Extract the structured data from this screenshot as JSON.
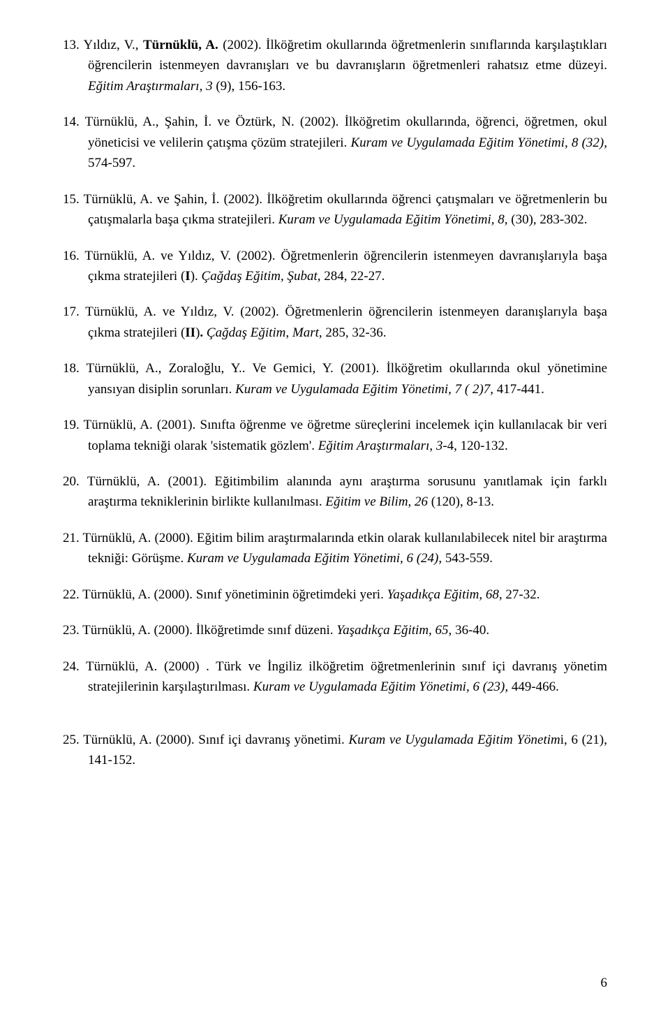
{
  "page_number": "6",
  "references": [
    {
      "parts": [
        {
          "t": "plain",
          "v": "Yıldız, V., "
        },
        {
          "t": "bold",
          "v": "Türnüklü, A."
        },
        {
          "t": "plain",
          "v": " (2002). İlköğretim okullarında öğretmenlerin sınıflarında karşılaştıkları öğrencilerin istenmeyen davranışları ve bu  davranışların öğretmenleri rahatsız etme düzeyi. "
        },
        {
          "t": "italic",
          "v": "Eğitim Araştırmaları, 3 "
        },
        {
          "t": "plain",
          "v": "(9), 156-163."
        }
      ]
    },
    {
      "parts": [
        {
          "t": "plain",
          "v": "Türnüklü, A.,  Şahin, İ. ve Öztürk, N. (2002). İlköğretim okullarında, öğrenci, öğretmen, okul yöneticisi ve velilerin çatışma çözüm stratejileri. "
        },
        {
          "t": "italic",
          "v": "Kuram ve Uygulamada Eğitim Yönetimi, 8 (32), "
        },
        {
          "t": "plain",
          "v": "574-597."
        }
      ]
    },
    {
      "parts": [
        {
          "t": "plain",
          "v": "Türnüklü, A. ve Şahin, İ. (2002). İlköğretim okullarında öğrenci çatışmaları ve öğretmenlerin bu çatışmalarla başa çıkma stratejileri. "
        },
        {
          "t": "italic",
          "v": "Kuram ve Uygulamada Eğitim Yönetimi, 8"
        },
        {
          "t": "plain",
          "v": ", (30), 283-302."
        }
      ]
    },
    {
      "parts": [
        {
          "t": "plain",
          "v": "Türnüklü, A. ve Yıldız, V. (2002). Öğretmenlerin öğrencilerin istenmeyen davranışlarıyla başa çıkma stratejileri ("
        },
        {
          "t": "bold",
          "v": "I"
        },
        {
          "t": "plain",
          "v": "). "
        },
        {
          "t": "italic",
          "v": "Çağdaş Eğitim, Şubat"
        },
        {
          "t": "plain",
          "v": ", 284, 22-27."
        }
      ]
    },
    {
      "parts": [
        {
          "t": "plain",
          "v": "Türnüklü, A. ve Yıldız, V. (2002). Öğretmenlerin öğrencilerin istenmeyen daranışlarıyla başa çıkma stratejileri ("
        },
        {
          "t": "bold",
          "v": "II"
        },
        {
          "t": "plain",
          "v": ")"
        },
        {
          "t": "bold",
          "v": ". "
        },
        {
          "t": "italic",
          "v": "Çağdaş Eğitim, Mart"
        },
        {
          "t": "plain",
          "v": ", 285, 32-36."
        }
      ]
    },
    {
      "parts": [
        {
          "t": "plain",
          "v": "Türnüklü, A., Zoraloğlu, Y.. Ve Gemici, Y.  (2001). İlköğretim okullarında okul yönetimine yansıyan disiplin sorunları. "
        },
        {
          "t": "italic",
          "v": "Kuram ve Uygulamada Eğitim Yönetimi, 7 ( 2)7, "
        },
        {
          "t": "plain",
          "v": "417-441."
        }
      ]
    },
    {
      "parts": [
        {
          "t": "plain",
          "v": "Türnüklü, A. (2001). Sınıfta öğrenme ve öğretme süreçlerini incelemek için kullanılacak bir veri toplama tekniği olarak 'sistematik gözlem'. "
        },
        {
          "t": "italic",
          "v": "Eğitim Araştırmaları, 3"
        },
        {
          "t": "plain",
          "v": "-4, 120-132."
        }
      ]
    },
    {
      "parts": [
        {
          "t": "plain",
          "v": "Türnüklü, A. (2001). Eğitimbilim alanında aynı araştırma sorusunu yanıtlamak için farklı araştırma tekniklerinin birlikte kullanılması. "
        },
        {
          "t": "italic",
          "v": "Eğitim ve Bilim, 26 "
        },
        {
          "t": "plain",
          "v": "(120), 8-13."
        }
      ]
    },
    {
      "parts": [
        {
          "t": "plain",
          "v": "Türnüklü, A. (2000). Eğitim bilim araştırmalarında etkin olarak kullanılabilecek nitel bir araştırma tekniği: Görüşme. "
        },
        {
          "t": "italic",
          "v": "Kuram ve Uygulamada Eğitim Yönetimi, 6 (24), "
        },
        {
          "t": "plain",
          "v": "543-559."
        }
      ]
    },
    {
      "parts": [
        {
          "t": "plain",
          "v": "Türnüklü, A. (2000). Sınıf yönetiminin öğretimdeki yeri. "
        },
        {
          "t": "italic",
          "v": "Yaşadıkça Eğitim, 68, "
        },
        {
          "t": "plain",
          "v": "27-32."
        }
      ]
    },
    {
      "parts": [
        {
          "t": "plain",
          "v": "Türnüklü, A. (2000). İlköğretimde sınıf düzeni. "
        },
        {
          "t": "italic",
          "v": "Yaşadıkça Eğitim, 65, "
        },
        {
          "t": "plain",
          "v": "36-40."
        }
      ]
    },
    {
      "parts": [
        {
          "t": "plain",
          "v": "Türnüklü, A. (2000) . Türk ve İngiliz ilköğretim öğretmenlerinin sınıf içi davranış yönetim stratejilerinin karşılaştırılması. "
        },
        {
          "t": "italic",
          "v": "Kuram ve Uygulamada Eğitim Yönetimi, 6 (23), "
        },
        {
          "t": "plain",
          "v": "449-466."
        }
      ]
    },
    {
      "parts": [
        {
          "t": "plain",
          "v": "Türnüklü, A. (2000). Sınıf içi davranış yönetimi. "
        },
        {
          "t": "italic",
          "v": "Kuram ve Uygulamada Eğitim Yönetim"
        },
        {
          "t": "plain",
          "v": "i, 6 (21), 141-152."
        }
      ]
    }
  ]
}
